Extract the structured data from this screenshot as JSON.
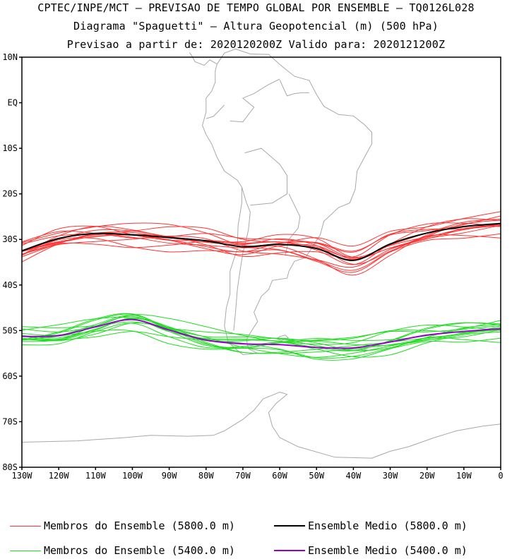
{
  "title": {
    "line1": "CPTEC/INPE/MCT – PREVISAO DE TEMPO GLOBAL POR ENSEMBLE – TQ0126L028",
    "line2": "Diagrama \"Spaguetti\" – Altura Geopotencial (m) (500 hPa)",
    "line3": "Previsao a partir de: 2020120200Z  Valido para: 2020121200Z"
  },
  "map": {
    "lon_range": [
      -130,
      0
    ],
    "lat_range": [
      -80,
      10
    ],
    "lat_ticks": [
      {
        "value": 10,
        "label": "10N"
      },
      {
        "value": 0,
        "label": "EQ"
      },
      {
        "value": -10,
        "label": "10S"
      },
      {
        "value": -20,
        "label": "20S"
      },
      {
        "value": -30,
        "label": "30S"
      },
      {
        "value": -40,
        "label": "40S"
      },
      {
        "value": -50,
        "label": "50S"
      },
      {
        "value": -60,
        "label": "60S"
      },
      {
        "value": -70,
        "label": "70S"
      },
      {
        "value": -80,
        "label": "80S"
      }
    ],
    "lon_ticks": [
      {
        "value": -130,
        "label": "130W"
      },
      {
        "value": -120,
        "label": "120W"
      },
      {
        "value": -110,
        "label": "110W"
      },
      {
        "value": -100,
        "label": "100W"
      },
      {
        "value": -90,
        "label": "90W"
      },
      {
        "value": -80,
        "label": "80W"
      },
      {
        "value": -70,
        "label": "70W"
      },
      {
        "value": -60,
        "label": "60W"
      },
      {
        "value": -50,
        "label": "50W"
      },
      {
        "value": -40,
        "label": "40W"
      },
      {
        "value": -30,
        "label": "30W"
      },
      {
        "value": -20,
        "label": "20W"
      },
      {
        "value": -10,
        "label": "10W"
      },
      {
        "value": 0,
        "label": "0"
      }
    ],
    "colors": {
      "members_5800": "#ff3333",
      "mean_5800": "#000000",
      "members_5400": "#22dd22",
      "mean_5400": "#9900cc",
      "coast": "#a8a8a8"
    }
  },
  "chart_data": {
    "type": "line",
    "x": [
      -130,
      -120,
      -110,
      -100,
      -90,
      -80,
      -70,
      -60,
      -50,
      -40,
      -30,
      -20,
      -10,
      0
    ],
    "series": [
      {
        "name": "Ensemble Medio (5800.0 m)",
        "values": [
          -32.5,
          -29.8,
          -28.7,
          -29.0,
          -29.6,
          -30.3,
          -31.6,
          -31.1,
          -32.0,
          -34.6,
          -31.0,
          -28.6,
          -27.2,
          -26.5
        ]
      },
      {
        "name": "Ensemble Medio (5400.0 m)",
        "values": [
          -51.3,
          -51.1,
          -49.2,
          -47.6,
          -49.9,
          -52.1,
          -52.9,
          -53.1,
          -53.7,
          -53.8,
          -52.5,
          -51.0,
          -50.2,
          -49.6
        ]
      }
    ],
    "members_5800_offsets": [
      -3.5,
      -2.8,
      -2.0,
      -1.3,
      -0.6,
      0.0,
      0.6,
      1.2,
      1.9,
      2.6,
      3.3,
      -1.0,
      1.5,
      -2.2
    ],
    "members_5400_offsets": [
      -3.2,
      -2.4,
      -1.6,
      -0.9,
      -0.3,
      0.4,
      1.0,
      1.7,
      2.3,
      3.0,
      -1.2,
      0.8,
      -2.0,
      1.4
    ]
  },
  "legend": [
    {
      "label": "Membros do Ensemble (5800.0 m)",
      "color": "#ff3333"
    },
    {
      "label": "Ensemble Medio (5800.0 m)",
      "color": "#000000"
    },
    {
      "label": "Membros do Ensemble (5400.0 m)",
      "color": "#22dd22"
    },
    {
      "label": "Ensemble Medio (5400.0 m)",
      "color": "#9900cc"
    }
  ]
}
